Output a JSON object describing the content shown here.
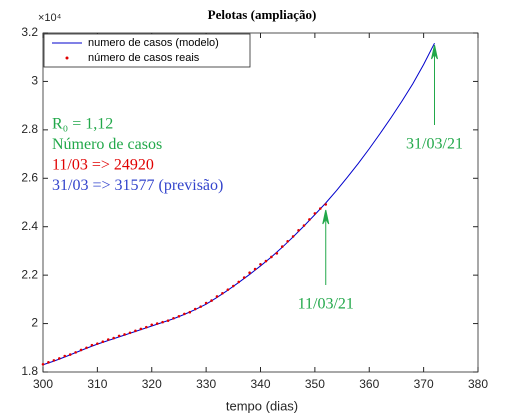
{
  "chart_data": {
    "type": "line",
    "title": "Pelotas (ampliação)",
    "x_label": "tempo (dias)",
    "y_exponent_label": "×10⁴",
    "xlim": [
      300,
      380
    ],
    "xticks": [
      300,
      310,
      320,
      330,
      340,
      350,
      360,
      370,
      380
    ],
    "ylim": [
      1.8,
      3.2
    ],
    "yticks": [
      1.8,
      2,
      2.2,
      2.4,
      2.6,
      2.8,
      3,
      3.2
    ],
    "grid": false,
    "legend": "top-left",
    "series": [
      {
        "name": "numero de casos (modelo)",
        "style": "line",
        "color": "#0000cc",
        "x": [
          300,
          302,
          304,
          306,
          308,
          310,
          312,
          314,
          316,
          318,
          320,
          322,
          324,
          326,
          328,
          330,
          332,
          334,
          336,
          338,
          340,
          342,
          344,
          346,
          348,
          350,
          352,
          354,
          356,
          358,
          360,
          362,
          364,
          366,
          368,
          370,
          372
        ],
        "values": [
          1.83,
          1.845,
          1.862,
          1.88,
          1.898,
          1.915,
          1.93,
          1.945,
          1.96,
          1.975,
          1.99,
          2.005,
          2.02,
          2.038,
          2.058,
          2.08,
          2.108,
          2.138,
          2.17,
          2.203,
          2.238,
          2.275,
          2.315,
          2.358,
          2.403,
          2.45,
          2.498,
          2.55,
          2.605,
          2.662,
          2.722,
          2.785,
          2.85,
          2.918,
          2.99,
          3.07,
          3.158
        ]
      },
      {
        "name": "número de casos reais",
        "style": "markers",
        "color": "#e00000",
        "x": [
          300,
          301,
          302,
          303,
          304,
          305,
          306,
          307,
          308,
          309,
          310,
          311,
          312,
          313,
          314,
          315,
          316,
          317,
          318,
          319,
          320,
          321,
          322,
          323,
          324,
          325,
          326,
          327,
          328,
          329,
          330,
          331,
          332,
          333,
          334,
          335,
          336,
          337,
          338,
          339,
          340,
          341,
          342,
          343,
          344,
          345,
          346,
          347,
          348,
          349,
          350,
          351,
          352
        ],
        "values": [
          1.832,
          1.84,
          1.848,
          1.856,
          1.866,
          1.872,
          1.881,
          1.891,
          1.9,
          1.911,
          1.917,
          1.925,
          1.934,
          1.94,
          1.949,
          1.955,
          1.962,
          1.97,
          1.978,
          1.985,
          1.995,
          2.0,
          2.006,
          2.012,
          2.022,
          2.03,
          2.04,
          2.047,
          2.06,
          2.07,
          2.085,
          2.095,
          2.112,
          2.125,
          2.14,
          2.155,
          2.172,
          2.19,
          2.21,
          2.225,
          2.245,
          2.258,
          2.275,
          2.29,
          2.318,
          2.34,
          2.36,
          2.385,
          2.405,
          2.43,
          2.455,
          2.475,
          2.492
        ]
      }
    ],
    "notes": [
      {
        "text": "R₀ = 1,12",
        "color": "#22a84a"
      },
      {
        "text": "Número de casos",
        "color": "#22a84a"
      },
      {
        "text": "11/03 => 24920",
        "color": "#e00000"
      },
      {
        "text": "31/03 => 31577 (previsão)",
        "color": "#3344cc"
      }
    ],
    "arrows": [
      {
        "text": "11/03/21",
        "color": "#22a84a"
      },
      {
        "text": "31/03/21",
        "color": "#22a84a"
      }
    ]
  }
}
